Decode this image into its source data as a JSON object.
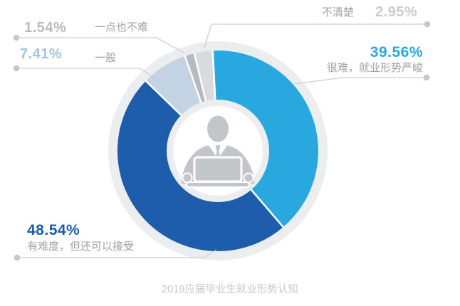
{
  "chart_data": {
    "type": "donut",
    "title": "2019应届毕业生就业形势认知",
    "unit": "%",
    "direction": "clockwise",
    "start_angle_deg": -3,
    "legend_position": "callouts-around-donut",
    "slices": [
      {
        "label": "很难，就业形势严峻",
        "value": 39.56,
        "display_value": "39.56%",
        "slice_color": "#29a8e0",
        "value_color": "#29a8e0"
      },
      {
        "label": "有难度，但还可以接受",
        "value": 48.54,
        "display_value": "48.54%",
        "slice_color": "#1e5dab",
        "value_color": "#1c5ca8"
      },
      {
        "label": "一般",
        "value": 7.41,
        "display_value": "7.41%",
        "slice_color": "#c3d3e3",
        "value_color": "#a7c3de"
      },
      {
        "label": "一点也不难",
        "value": 1.54,
        "display_value": "1.54%",
        "slice_color": "#b4bac0",
        "value_color": "#b9bcbf"
      },
      {
        "label": "不清楚",
        "value": 2.95,
        "display_value": "2.95%",
        "slice_color": "#d8dbde",
        "value_color": "#cacdd0"
      }
    ],
    "center_icon": "businessperson-laptop-icon",
    "colors": {
      "plate_ring": "#ecedef",
      "inner_ring": "#ecedef",
      "center_circle": "#ffffff",
      "leader_line": "#ccced1",
      "leader_dot": "#c5c8cb",
      "label_text": "#9ea3a7",
      "title_text": "#c6c9cc",
      "icon_gray": "#c3c6c9",
      "slice_separator": "#ffffff"
    }
  }
}
